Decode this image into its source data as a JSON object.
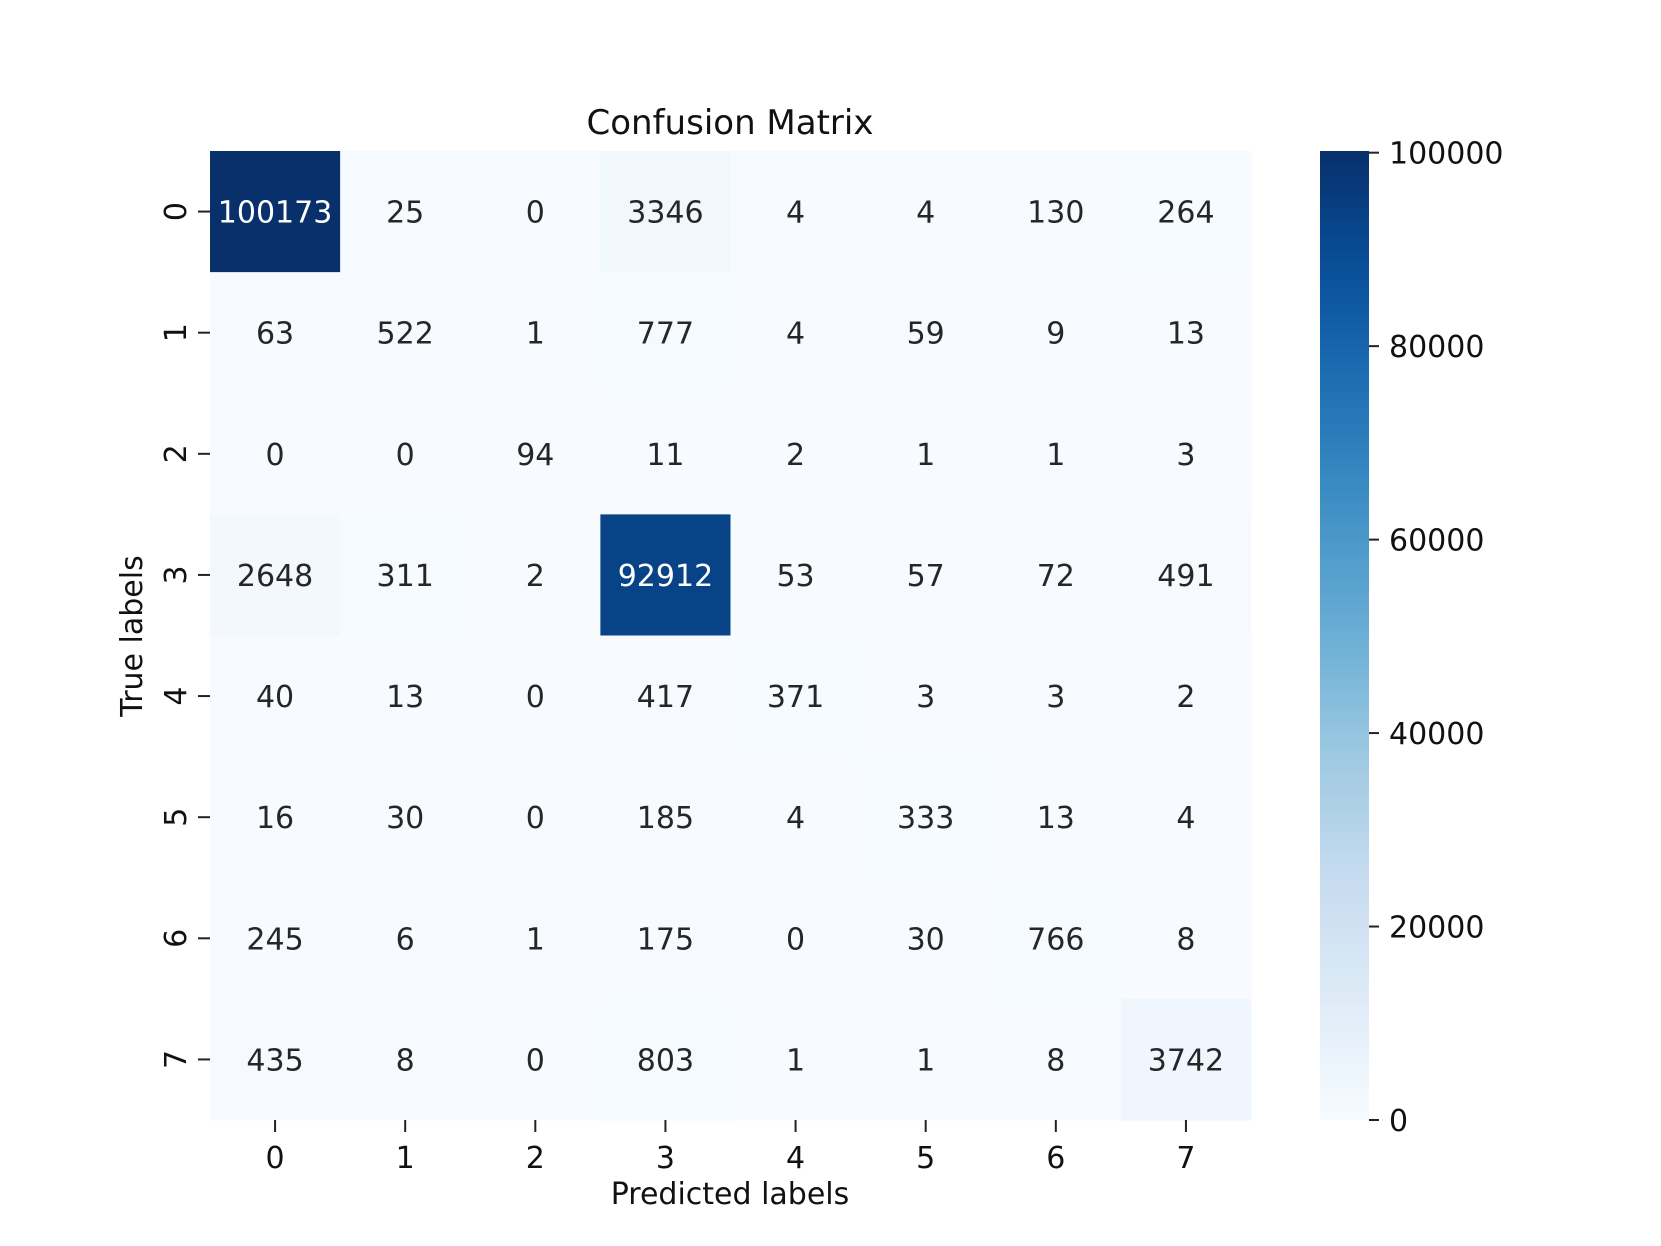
{
  "chart_data": {
    "type": "heatmap",
    "title": "Confusion Matrix",
    "xlabel": "Predicted labels",
    "ylabel": "True labels",
    "x_categories": [
      "0",
      "1",
      "2",
      "3",
      "4",
      "5",
      "6",
      "7"
    ],
    "y_categories": [
      "0",
      "1",
      "2",
      "3",
      "4",
      "5",
      "6",
      "7"
    ],
    "values": [
      [
        100173,
        25,
        0,
        3346,
        4,
        4,
        130,
        264
      ],
      [
        63,
        522,
        1,
        777,
        4,
        59,
        9,
        13
      ],
      [
        0,
        0,
        94,
        11,
        2,
        1,
        1,
        3
      ],
      [
        2648,
        311,
        2,
        92912,
        53,
        57,
        72,
        491
      ],
      [
        40,
        13,
        0,
        417,
        371,
        3,
        3,
        2
      ],
      [
        16,
        30,
        0,
        185,
        4,
        333,
        13,
        4
      ],
      [
        245,
        6,
        1,
        175,
        0,
        30,
        766,
        8
      ],
      [
        435,
        8,
        0,
        803,
        1,
        1,
        8,
        3742
      ]
    ],
    "colormap": "Blues",
    "color_range": [
      0,
      100173
    ],
    "colorbar": {
      "ticks": [
        0,
        20000,
        40000,
        60000,
        80000,
        100000
      ],
      "tick_labels": [
        "0",
        "20000",
        "40000",
        "60000",
        "80000",
        "100000"
      ]
    },
    "legend": "none",
    "grid": false
  }
}
